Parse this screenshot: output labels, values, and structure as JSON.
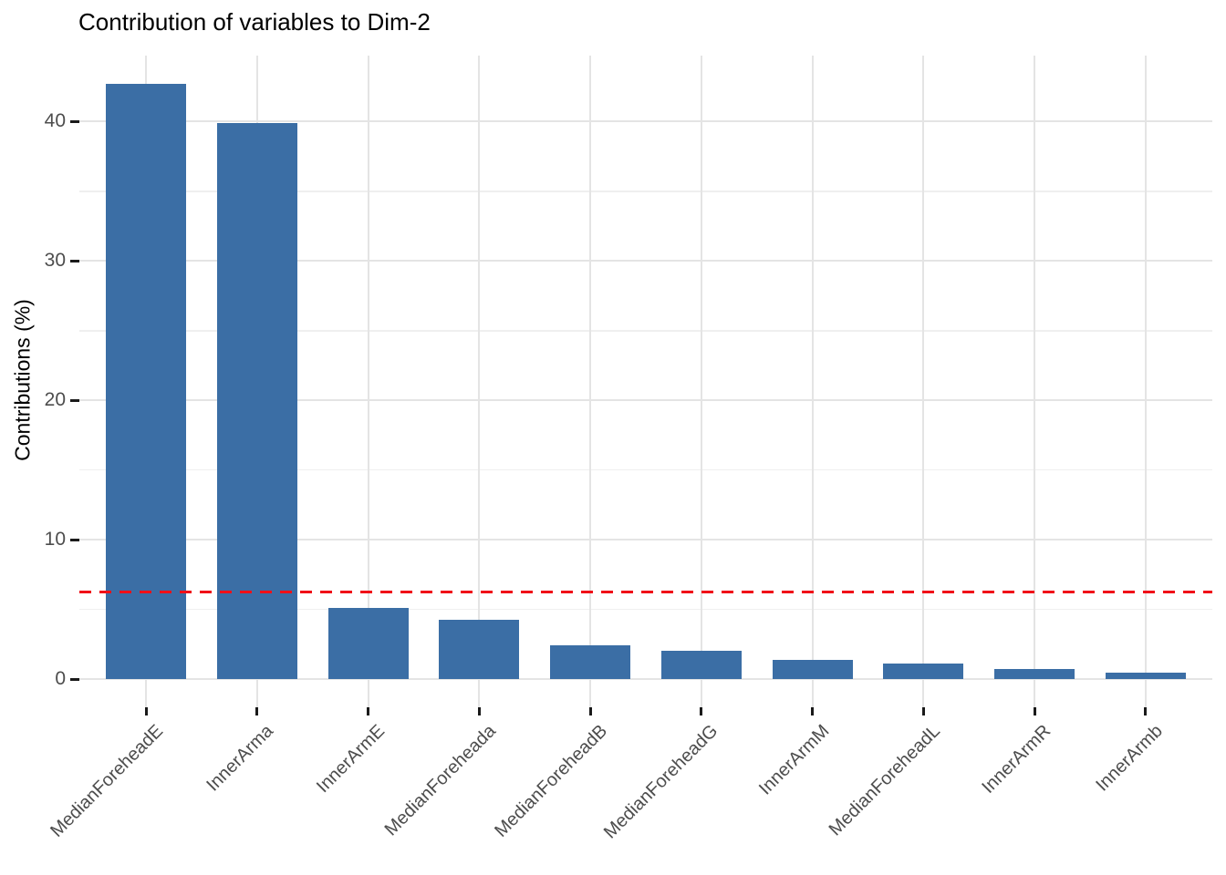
{
  "chart_data": {
    "type": "bar",
    "title": "Contribution of variables to Dim-2",
    "ylabel": "Contributions (%)",
    "xlabel": "",
    "categories": [
      "MedianForeheadE",
      "InnerArma",
      "InnerArmE",
      "MedianForeheada",
      "MedianForeheadB",
      "MedianForeheadG",
      "InnerArmM",
      "MedianForeheadL",
      "InnerArmR",
      "InnerArmb"
    ],
    "values": [
      42.7,
      39.9,
      5.1,
      4.25,
      2.4,
      2.05,
      1.4,
      1.1,
      0.75,
      0.45
    ],
    "yticks": [
      0,
      10,
      20,
      30,
      40
    ],
    "yticks_minor": [
      5,
      15,
      25,
      35
    ],
    "ylim": [
      -2,
      44.7
    ],
    "grid": true,
    "legend": "none",
    "reference_line": {
      "value": 6.25,
      "style": "dashed",
      "color": "#F01018"
    },
    "colors": {
      "bar": "#3B6EA5",
      "background": "#FFFFFF",
      "grid_major": "#E4E4E4",
      "grid_minor": "#EFEFEF",
      "axis_text": "#4D4D4D",
      "axis_tick": "#1A1A1A",
      "title_text": "#000000"
    }
  }
}
